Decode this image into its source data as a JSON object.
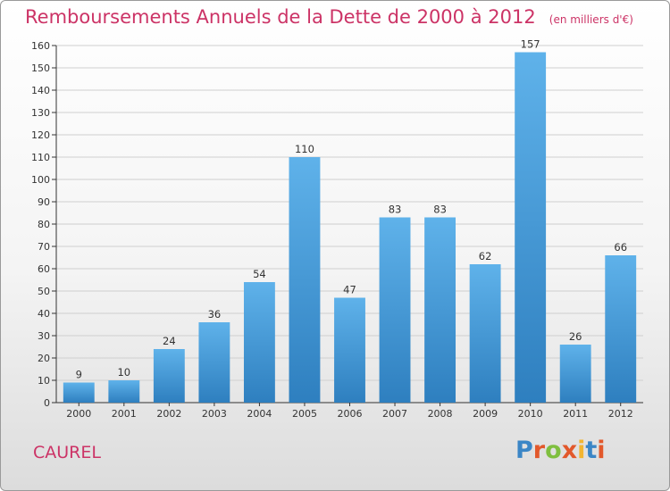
{
  "header": {
    "title": "Remboursements Annuels de la Dette de 2000 à 2012",
    "unit": "(en milliers d'€)"
  },
  "footer": {
    "commune": "CAUREL",
    "logo_text": "Proxiti",
    "logo_colors": [
      "#3b86c6",
      "#e2582b",
      "#7fbf3f",
      "#e2582b",
      "#f2b531",
      "#3b86c6",
      "#e2582b"
    ]
  },
  "colors": {
    "bar_top": "#5fb2ea",
    "bar_bottom": "#2e7fbf",
    "title": "#cc3366",
    "grid": "#cfcfcf",
    "axis": "#333333"
  },
  "chart_data": {
    "type": "bar",
    "categories": [
      "2000",
      "2001",
      "2002",
      "2003",
      "2004",
      "2005",
      "2006",
      "2007",
      "2008",
      "2009",
      "2010",
      "2011",
      "2012"
    ],
    "values": [
      9,
      10,
      24,
      36,
      54,
      110,
      47,
      83,
      83,
      62,
      157,
      26,
      66
    ],
    "value_labels": [
      "9",
      "10",
      "24",
      "36",
      "54",
      "110",
      "47",
      "83",
      "83",
      "62",
      "157",
      "26",
      "66"
    ],
    "title": "Remboursements Annuels de la Dette de 2000 à 2012",
    "xlabel": "",
    "ylabel": "",
    "ylim": [
      0,
      160
    ],
    "yticks": [
      0,
      10,
      20,
      30,
      40,
      50,
      60,
      70,
      80,
      90,
      100,
      110,
      120,
      130,
      140,
      150,
      160
    ],
    "grid": true,
    "legend": "none"
  }
}
